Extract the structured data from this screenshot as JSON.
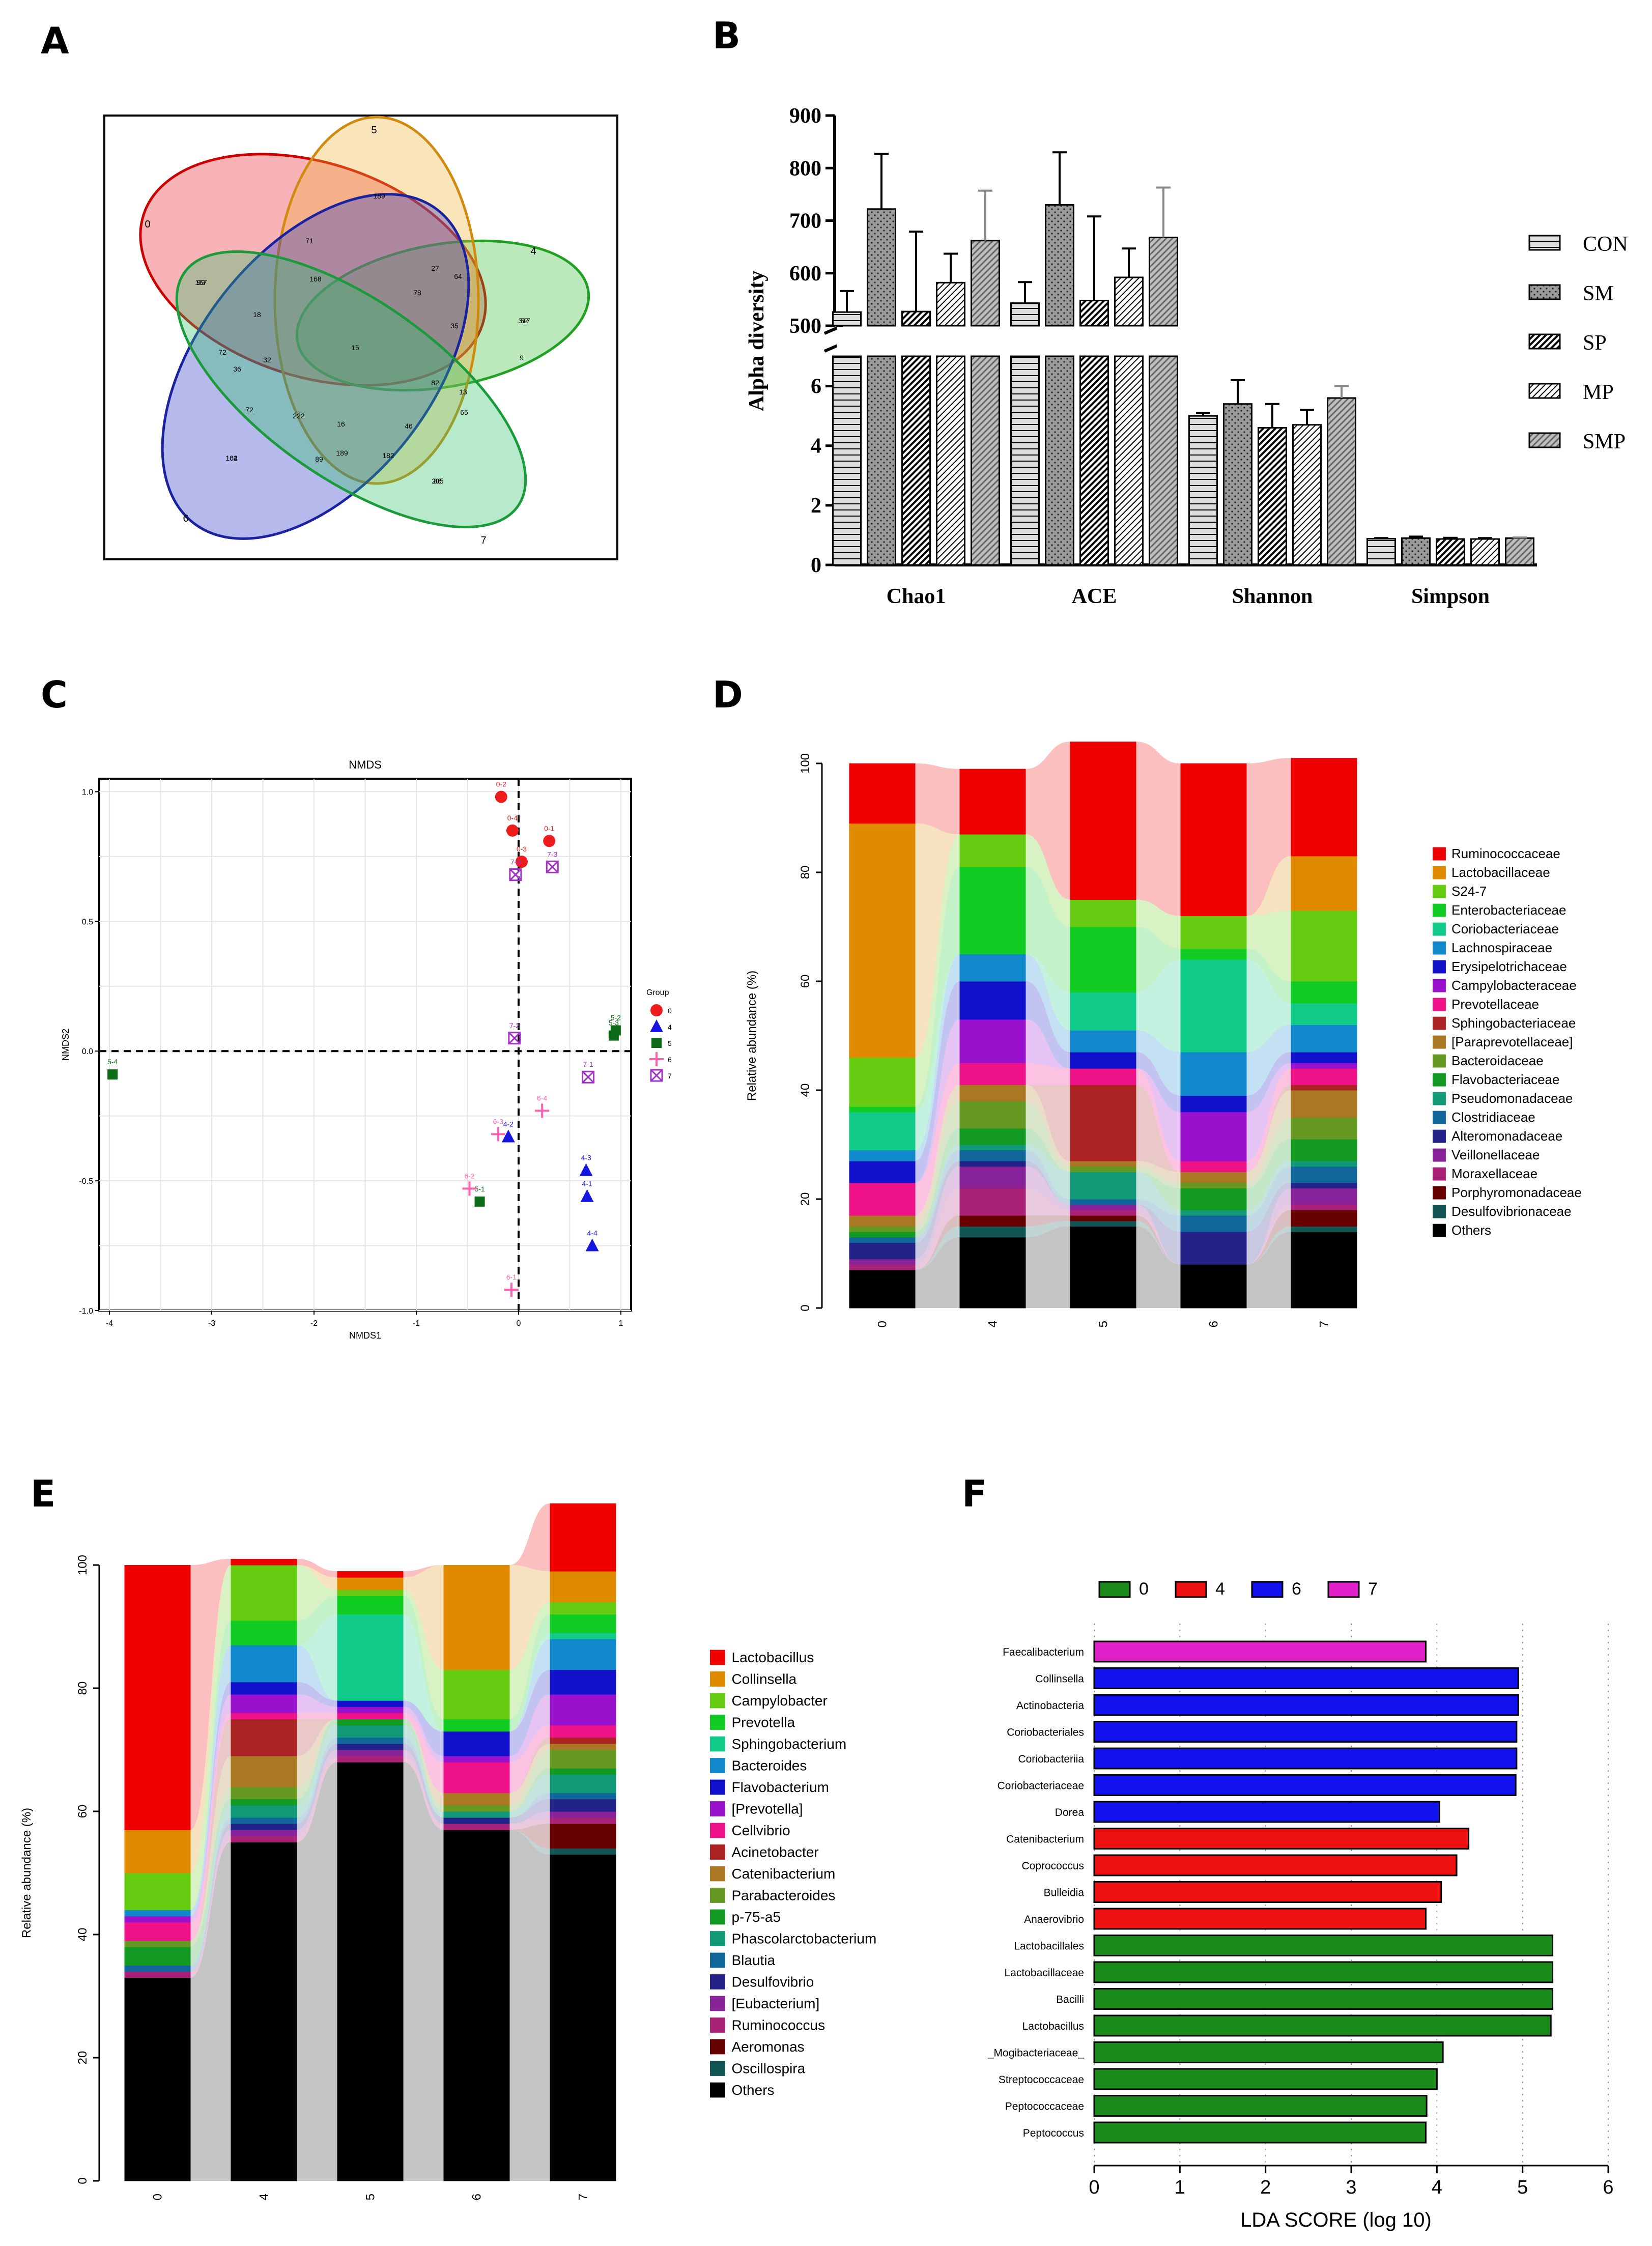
{
  "panel_labels": [
    "A",
    "B",
    "C",
    "D",
    "E",
    "F"
  ],
  "chart_data": [
    {
      "panel": "A",
      "type": "venn",
      "sets": [
        "0",
        "4",
        "5",
        "6",
        "7"
      ],
      "set_colors": [
        "#e8262a",
        "#3fbf3f",
        "#f2b23a",
        "#2a37c9",
        "#32c46b"
      ],
      "region_values": [
        {
          "label": "0 only",
          "value": "167"
        },
        {
          "label": "4 only",
          "value": "317"
        },
        {
          "label": "5 only",
          "value": "189"
        },
        {
          "label": "6 only",
          "value": "164"
        },
        {
          "label": "7 only",
          "value": "205"
        },
        {
          "label": "r1",
          "value": "27"
        },
        {
          "label": "r2",
          "value": "64"
        },
        {
          "label": "r3",
          "value": "168"
        },
        {
          "label": "r4",
          "value": "18"
        },
        {
          "label": "r5",
          "value": "78"
        },
        {
          "label": "r6",
          "value": "35"
        },
        {
          "label": "r7",
          "value": "72"
        },
        {
          "label": "r8",
          "value": "36"
        },
        {
          "label": "r9",
          "value": "32"
        },
        {
          "label": "r10",
          "value": "15"
        },
        {
          "label": "r11",
          "value": "9"
        },
        {
          "label": "r12",
          "value": "82"
        },
        {
          "label": "r13",
          "value": "13"
        },
        {
          "label": "r14",
          "value": "72"
        },
        {
          "label": "core",
          "value": "222"
        },
        {
          "label": "r15",
          "value": "16"
        },
        {
          "label": "r16",
          "value": "46"
        },
        {
          "label": "r17",
          "value": "65"
        },
        {
          "label": "r18",
          "value": "189"
        },
        {
          "label": "r19",
          "value": "182"
        },
        {
          "label": "r20",
          "value": "89"
        },
        {
          "label": "r21",
          "value": "102"
        },
        {
          "label": "r22",
          "value": "86"
        },
        {
          "label": "r23",
          "value": "52"
        },
        {
          "label": "r24",
          "value": "99"
        },
        {
          "label": "r25",
          "value": "71"
        }
      ]
    },
    {
      "panel": "B",
      "type": "bar",
      "ylabel": "Alpha diversity",
      "categories": [
        "Chao1",
        "ACE",
        "Shannon",
        "Simpson"
      ],
      "y_ticks_upper": [
        "900",
        "800",
        "700",
        "600",
        "500"
      ],
      "y_ticks_lower": [
        "6",
        "4",
        "2",
        "0"
      ],
      "ylim_upper": [
        500,
        900
      ],
      "ylim_lower": [
        0,
        7
      ],
      "series": [
        {
          "name": "CON",
          "values": [
            526,
            543,
            5.0,
            0.88
          ],
          "errors": [
            40,
            40,
            0.1,
            0.02
          ]
        },
        {
          "name": "SM",
          "values": [
            722,
            730,
            5.4,
            0.9
          ],
          "errors": [
            105,
            100,
            0.8,
            0.05
          ]
        },
        {
          "name": "SP",
          "values": [
            527,
            548,
            4.6,
            0.87
          ],
          "errors": [
            152,
            160,
            0.8,
            0.04
          ]
        },
        {
          "name": "MP",
          "values": [
            582,
            592,
            4.7,
            0.87
          ],
          "errors": [
            55,
            55,
            0.5,
            0.03
          ]
        },
        {
          "name": "SMP",
          "values": [
            662,
            668,
            5.6,
            0.9
          ],
          "errors": [
            95,
            95,
            0.4,
            0.02
          ]
        }
      ]
    },
    {
      "panel": "C",
      "type": "scatter",
      "title": "NMDS",
      "xlabel": "NMDS1",
      "ylabel": "NMDS2",
      "xlim": [
        -4.1,
        1.1
      ],
      "ylim": [
        -1.0,
        1.05
      ],
      "x_ticks": [
        "-4",
        "-3",
        "-2",
        "-1",
        "0",
        "1"
      ],
      "y_ticks": [
        "1.0",
        "0.5",
        "0.0",
        "-0.5",
        "-1.0"
      ],
      "legend_title": "Group",
      "groups": [
        "0",
        "4",
        "5",
        "6",
        "7"
      ],
      "group_colors": [
        "#ee1c1c",
        "#1616e0",
        "#0b6b16",
        "#ff5faf",
        "#a030c8"
      ],
      "points": [
        {
          "label": "0-2",
          "group": "0",
          "x": -0.17,
          "y": 0.98
        },
        {
          "label": "0-1",
          "group": "0",
          "x": 0.3,
          "y": 0.81
        },
        {
          "label": "0-4",
          "group": "0",
          "x": -0.06,
          "y": 0.85
        },
        {
          "label": "0-3",
          "group": "0",
          "x": 0.03,
          "y": 0.73
        },
        {
          "label": "7-3",
          "group": "7",
          "x": 0.33,
          "y": 0.71
        },
        {
          "label": "7-4",
          "group": "7",
          "x": -0.03,
          "y": 0.68
        },
        {
          "label": "7-2",
          "group": "7",
          "x": -0.04,
          "y": 0.05
        },
        {
          "label": "7-1",
          "group": "7",
          "x": 0.68,
          "y": -0.1
        },
        {
          "label": "5-2",
          "group": "5",
          "x": 0.95,
          "y": 0.08
        },
        {
          "label": "5-3",
          "group": "5",
          "x": 0.93,
          "y": 0.06
        },
        {
          "label": "5-4",
          "group": "5",
          "x": -3.97,
          "y": -0.09
        },
        {
          "label": "5-1",
          "group": "5",
          "x": -0.38,
          "y": -0.58
        },
        {
          "label": "6-4",
          "group": "6",
          "x": 0.23,
          "y": -0.23
        },
        {
          "label": "6-3",
          "group": "6",
          "x": -0.2,
          "y": -0.32
        },
        {
          "label": "6-2",
          "group": "6",
          "x": -0.48,
          "y": -0.53
        },
        {
          "label": "6-1",
          "group": "6",
          "x": -0.07,
          "y": -0.92
        },
        {
          "label": "4-2",
          "group": "4",
          "x": -0.1,
          "y": -0.33
        },
        {
          "label": "4-3",
          "group": "4",
          "x": 0.66,
          "y": -0.46
        },
        {
          "label": "4-1",
          "group": "4",
          "x": 0.67,
          "y": -0.56
        },
        {
          "label": "4-4",
          "group": "4",
          "x": 0.72,
          "y": -0.75
        }
      ]
    },
    {
      "panel": "D",
      "type": "stacked_bar",
      "ylabel": "Relative abundance (%)",
      "ylim": [
        0,
        100
      ],
      "y_ticks": [
        "0",
        "20",
        "40",
        "60",
        "80",
        "100"
      ],
      "categories": [
        "0",
        "4",
        "5",
        "6",
        "7"
      ],
      "series": [
        {
          "name": "Ruminococcaceae",
          "color": "#ee0000",
          "values": [
            11,
            12,
            29,
            28,
            18
          ]
        },
        {
          "name": "Lactobacillaceae",
          "color": "#e08a00",
          "values": [
            43,
            0,
            0,
            0,
            10
          ]
        },
        {
          "name": "S24-7",
          "color": "#66cc11",
          "values": [
            9,
            6,
            5,
            6,
            13
          ]
        },
        {
          "name": "Enterobacteriaceae",
          "color": "#11cc22",
          "values": [
            1,
            16,
            12,
            2,
            4
          ]
        },
        {
          "name": "Coriobacteriaceae",
          "color": "#11cc88",
          "values": [
            7,
            0,
            7,
            17,
            4
          ]
        },
        {
          "name": "Lachnospiraceae",
          "color": "#1188cc",
          "values": [
            2,
            5,
            4,
            8,
            5
          ]
        },
        {
          "name": "Erysipelotrichaceae",
          "color": "#1111cc",
          "values": [
            4,
            7,
            3,
            3,
            2
          ]
        },
        {
          "name": "Campylobacteraceae",
          "color": "#9911cc",
          "values": [
            0,
            8,
            0,
            9,
            1
          ]
        },
        {
          "name": "Prevotellaceae",
          "color": "#ee1188",
          "values": [
            6,
            4,
            3,
            2,
            3
          ]
        },
        {
          "name": "Sphingobacteriaceae",
          "color": "#aa2222",
          "values": [
            0,
            0,
            14,
            0,
            1
          ]
        },
        {
          "name": "[Paraprevotellaceae]",
          "color": "#aa7722",
          "values": [
            2,
            3,
            1,
            2,
            5
          ]
        },
        {
          "name": "Bacteroidaceae",
          "color": "#669922",
          "values": [
            1,
            5,
            1,
            1,
            4
          ]
        },
        {
          "name": "Flavobacteriaceae",
          "color": "#119922",
          "values": [
            1,
            3,
            0,
            4,
            4
          ]
        },
        {
          "name": "Pseudomonadaceae",
          "color": "#119977",
          "values": [
            0,
            1,
            5,
            1,
            1
          ]
        },
        {
          "name": "Clostridiaceae",
          "color": "#116699",
          "values": [
            1,
            2,
            1,
            3,
            3
          ]
        },
        {
          "name": "Alteromonadaceae",
          "color": "#222288",
          "values": [
            3,
            1,
            0,
            6,
            1
          ]
        },
        {
          "name": "Veillonellaceae",
          "color": "#882299",
          "values": [
            1,
            4,
            1,
            0,
            3
          ]
        },
        {
          "name": "Moraxellaceae",
          "color": "#aa2277",
          "values": [
            1,
            5,
            1,
            0,
            1
          ]
        },
        {
          "name": "Porphyromonadaceae",
          "color": "#660000",
          "values": [
            0,
            2,
            1,
            0,
            3
          ]
        },
        {
          "name": "Desulfovibrionaceae",
          "color": "#115555",
          "values": [
            0,
            2,
            1,
            0,
            1
          ]
        },
        {
          "name": "Others",
          "color": "#000000",
          "values": [
            7,
            13,
            15,
            8,
            14
          ]
        }
      ]
    },
    {
      "panel": "E",
      "type": "stacked_bar",
      "ylabel": "Relative abundance (%)",
      "ylim": [
        0,
        100
      ],
      "y_ticks": [
        "0",
        "20",
        "40",
        "60",
        "80",
        "100"
      ],
      "categories": [
        "0",
        "4",
        "5",
        "6",
        "7"
      ],
      "series": [
        {
          "name": "Lactobacillus",
          "color": "#ee0000",
          "values": [
            43,
            1,
            1,
            0,
            11
          ]
        },
        {
          "name": "Collinsella",
          "color": "#e08a00",
          "values": [
            7,
            0,
            2,
            17,
            5
          ]
        },
        {
          "name": "Campylobacter",
          "color": "#66cc11",
          "values": [
            6,
            9,
            1,
            8,
            2
          ]
        },
        {
          "name": "Prevotella",
          "color": "#11cc22",
          "values": [
            0,
            4,
            3,
            2,
            3
          ]
        },
        {
          "name": "Sphingobacterium",
          "color": "#11cc88",
          "values": [
            0,
            0,
            14,
            0,
            1
          ]
        },
        {
          "name": "Bacteroides",
          "color": "#1188cc",
          "values": [
            1,
            6,
            0,
            0,
            5
          ]
        },
        {
          "name": "Flavobacterium",
          "color": "#1111cc",
          "values": [
            0,
            2,
            1,
            4,
            4
          ]
        },
        {
          "name": "[Prevotella]",
          "color": "#9911cc",
          "values": [
            1,
            3,
            1,
            1,
            5
          ]
        },
        {
          "name": "Cellvibrio",
          "color": "#ee1188",
          "values": [
            3,
            1,
            1,
            5,
            2
          ]
        },
        {
          "name": "Acinetobacter",
          "color": "#aa2222",
          "values": [
            0,
            6,
            0,
            0,
            1
          ]
        },
        {
          "name": "Catenibacterium",
          "color": "#aa7722",
          "values": [
            0,
            5,
            0,
            2,
            1
          ]
        },
        {
          "name": "Parabacteroides",
          "color": "#669922",
          "values": [
            1,
            2,
            0,
            1,
            3
          ]
        },
        {
          "name": "p-75-a5",
          "color": "#119922",
          "values": [
            3,
            1,
            1,
            0,
            1
          ]
        },
        {
          "name": "Phascolarctobacterium",
          "color": "#119977",
          "values": [
            0,
            2,
            2,
            1,
            3
          ]
        },
        {
          "name": "Blautia",
          "color": "#116699",
          "values": [
            1,
            1,
            1,
            0,
            1
          ]
        },
        {
          "name": "Desulfovibrio",
          "color": "#222288",
          "values": [
            0,
            1,
            1,
            1,
            2
          ]
        },
        {
          "name": "[Eubacterium]",
          "color": "#882299",
          "values": [
            0,
            1,
            1,
            0,
            1
          ]
        },
        {
          "name": "Ruminococcus",
          "color": "#aa2277",
          "values": [
            1,
            1,
            1,
            1,
            1
          ]
        },
        {
          "name": "Aeromonas",
          "color": "#660000",
          "values": [
            0,
            0,
            0,
            0,
            4
          ]
        },
        {
          "name": "Oscillospira",
          "color": "#115555",
          "values": [
            0,
            0,
            0,
            0,
            1
          ]
        },
        {
          "name": "Others",
          "color": "#000000",
          "values": [
            33,
            55,
            68,
            57,
            53
          ]
        }
      ]
    },
    {
      "panel": "F",
      "type": "horizontal_bar",
      "xlabel": "LDA SCORE (log 10)",
      "xlim": [
        0,
        6
      ],
      "x_ticks": [
        "0",
        "1",
        "2",
        "3",
        "4",
        "5",
        "6"
      ],
      "legend": [
        {
          "name": "0",
          "color": "#1a8a1a"
        },
        {
          "name": "4",
          "color": "#ee1111"
        },
        {
          "name": "6",
          "color": "#1111ee"
        },
        {
          "name": "7",
          "color": "#e020c8"
        }
      ],
      "bars": [
        {
          "label": "Faecalibacterium",
          "group": "7",
          "value": 3.87
        },
        {
          "label": "Collinsella",
          "group": "6",
          "value": 4.95
        },
        {
          "label": "Actinobacteria",
          "group": "6",
          "value": 4.95
        },
        {
          "label": "Coriobacteriales",
          "group": "6",
          "value": 4.93
        },
        {
          "label": "Coriobacteriia",
          "group": "6",
          "value": 4.93
        },
        {
          "label": "Coriobacteriaceae",
          "group": "6",
          "value": 4.92
        },
        {
          "label": "Dorea",
          "group": "6",
          "value": 4.03
        },
        {
          "label": "Catenibacterium",
          "group": "4",
          "value": 4.37
        },
        {
          "label": "Coprococcus",
          "group": "4",
          "value": 4.23
        },
        {
          "label": "Bulleidia",
          "group": "4",
          "value": 4.05
        },
        {
          "label": "Anaerovibrio",
          "group": "4",
          "value": 3.87
        },
        {
          "label": "Lactobacillales",
          "group": "0",
          "value": 5.35
        },
        {
          "label": "Lactobacillaceae",
          "group": "0",
          "value": 5.35
        },
        {
          "label": "Bacilli",
          "group": "0",
          "value": 5.35
        },
        {
          "label": "Lactobacillus",
          "group": "0",
          "value": 5.33
        },
        {
          "label": "_Mogibacteriaceae_",
          "group": "0",
          "value": 4.07
        },
        {
          "label": "Streptococcaceae",
          "group": "0",
          "value": 4.0
        },
        {
          "label": "Peptococcaceae",
          "group": "0",
          "value": 3.88
        },
        {
          "label": "Peptococcus",
          "group": "0",
          "value": 3.87
        }
      ]
    }
  ]
}
